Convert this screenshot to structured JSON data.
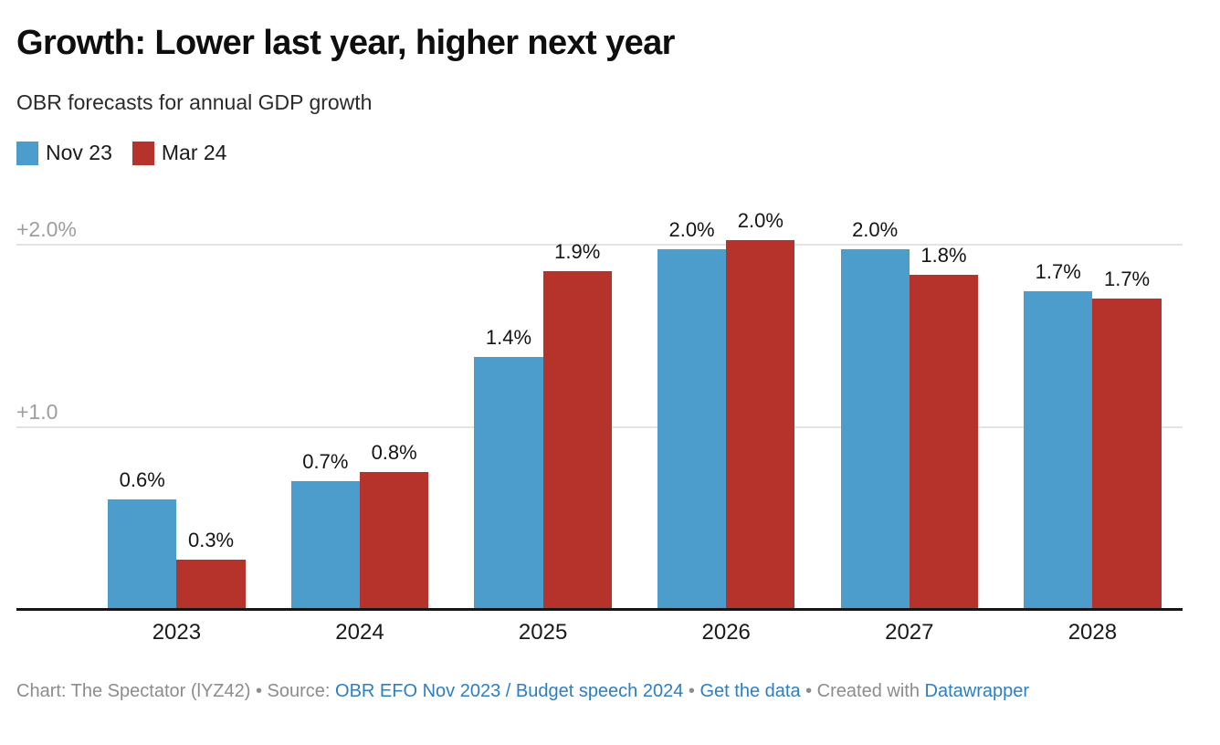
{
  "header": {
    "title": "Growth: Lower last year, higher next year",
    "subtitle": "OBR forecasts for annual GDP growth"
  },
  "chart_data": {
    "type": "bar",
    "grouped": true,
    "title": "Growth: Lower last year, higher next year",
    "subtitle": "OBR forecasts for annual GDP growth",
    "categories": [
      "2023",
      "2024",
      "2025",
      "2026",
      "2027",
      "2028"
    ],
    "series": [
      {
        "name": "Nov 23",
        "color": "#4C9DCC",
        "values": [
          0.6,
          0.7,
          1.4,
          2.0,
          2.0,
          1.7
        ],
        "data_labels": [
          "0.6%",
          "0.7%",
          "1.4%",
          "2.0%",
          "2.0%",
          "1.7%"
        ],
        "render_values": [
          0.6,
          0.7,
          1.38,
          1.97,
          1.97,
          1.74
        ]
      },
      {
        "name": "Mar 24",
        "color": "#B5332A",
        "values": [
          0.3,
          0.8,
          1.9,
          2.0,
          1.8,
          1.7
        ],
        "data_labels": [
          "0.3%",
          "0.8%",
          "1.9%",
          "2.0%",
          "1.8%",
          "1.7%"
        ],
        "render_values": [
          0.27,
          0.75,
          1.85,
          2.02,
          1.83,
          1.7
        ]
      }
    ],
    "ylabel": "",
    "xlabel": "",
    "ylim": [
      0,
      2.1
    ],
    "y_ticks": [
      {
        "label": "+1.0",
        "value": 1.0
      },
      {
        "label": "+2.0%",
        "value": 2.0
      }
    ],
    "grid": "horizontal",
    "legend_position": "top-left",
    "value_labels_shown": true
  },
  "colors": {
    "series_blue": "#4C9DCC",
    "series_red": "#B5332A",
    "gridline": "#e3e3e3",
    "axis_line": "#161616",
    "tick_text": "#9e9e9e",
    "link": "#2b7fc4",
    "footer_text": "#8c8c8c"
  },
  "footer": {
    "parts": [
      {
        "type": "text",
        "text": "Chart: The Spectator (lYZ42) • Source: "
      },
      {
        "type": "link",
        "name": "source-link",
        "text": "OBR EFO Nov 2023 / Budget speech 2024"
      },
      {
        "type": "text",
        "text": " • "
      },
      {
        "type": "link",
        "name": "get-the-data-link",
        "text": "Get the data"
      },
      {
        "type": "text",
        "text": " • Created with "
      },
      {
        "type": "link",
        "name": "datawrapper-link",
        "text": "Datawrapper"
      }
    ]
  }
}
